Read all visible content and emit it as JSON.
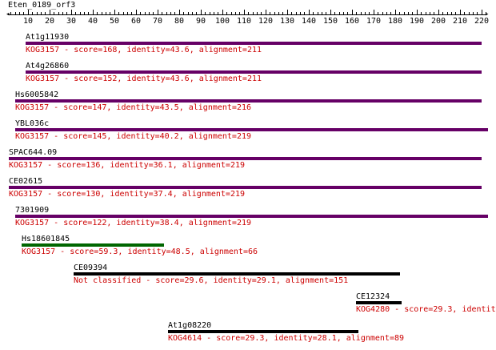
{
  "query": {
    "name": "Eten_0189_orf3",
    "length": 223
  },
  "axis": {
    "min": 1,
    "max": 223,
    "labels": [
      10,
      20,
      30,
      40,
      50,
      60,
      70,
      80,
      90,
      100,
      110,
      120,
      130,
      140,
      150,
      160,
      170,
      180,
      190,
      200,
      210,
      220
    ]
  },
  "colors": {
    "purple": "#660066",
    "green": "#006600",
    "black": "#000000",
    "info_text": "#cc0000"
  },
  "hits": [
    {
      "name": "At1g11930",
      "start": 9,
      "end": 220,
      "color": "purple",
      "info": "KOG3157 - score=168, identity=43.6, alignment=211"
    },
    {
      "name": "At4g26860",
      "start": 9,
      "end": 220,
      "color": "purple",
      "info": "KOG3157 - score=152, identity=43.6, alignment=211"
    },
    {
      "name": "Hs6005842",
      "start": 4,
      "end": 220,
      "color": "purple",
      "info": "KOG3157 - score=147, identity=43.5, alignment=216"
    },
    {
      "name": "YBL036c",
      "start": 4,
      "end": 223,
      "color": "purple",
      "info": "KOG3157 - score=145, identity=40.2, alignment=219"
    },
    {
      "name": "SPAC644.09",
      "start": 1,
      "end": 220,
      "color": "purple",
      "info": "KOG3157 - score=136, identity=36.1, alignment=219"
    },
    {
      "name": "CE02615",
      "start": 1,
      "end": 220,
      "color": "purple",
      "info": "KOG3157 - score=130, identity=37.4, alignment=219"
    },
    {
      "name": "7301909",
      "start": 4,
      "end": 223,
      "color": "purple",
      "info": "KOG3157 - score=122, identity=38.4, alignment=219"
    },
    {
      "name": "Hs18601845",
      "start": 7,
      "end": 73,
      "color": "green",
      "info": "KOG3157 - score=59.3, identity=48.5, alignment=66"
    },
    {
      "name": "CE09394",
      "start": 31,
      "end": 182,
      "color": "black",
      "info": "Not classified - score=29.6, identity=29.1, alignment=151"
    },
    {
      "name": "CE12324",
      "start": 162,
      "end": 183,
      "color": "black",
      "info": "KOG4280 - score=29.3, identit"
    },
    {
      "name": "At1g08220",
      "start": 75,
      "end": 163,
      "color": "black",
      "info": "KOG4614 - score=29.3, identity=28.1, alignment=89"
    }
  ]
}
